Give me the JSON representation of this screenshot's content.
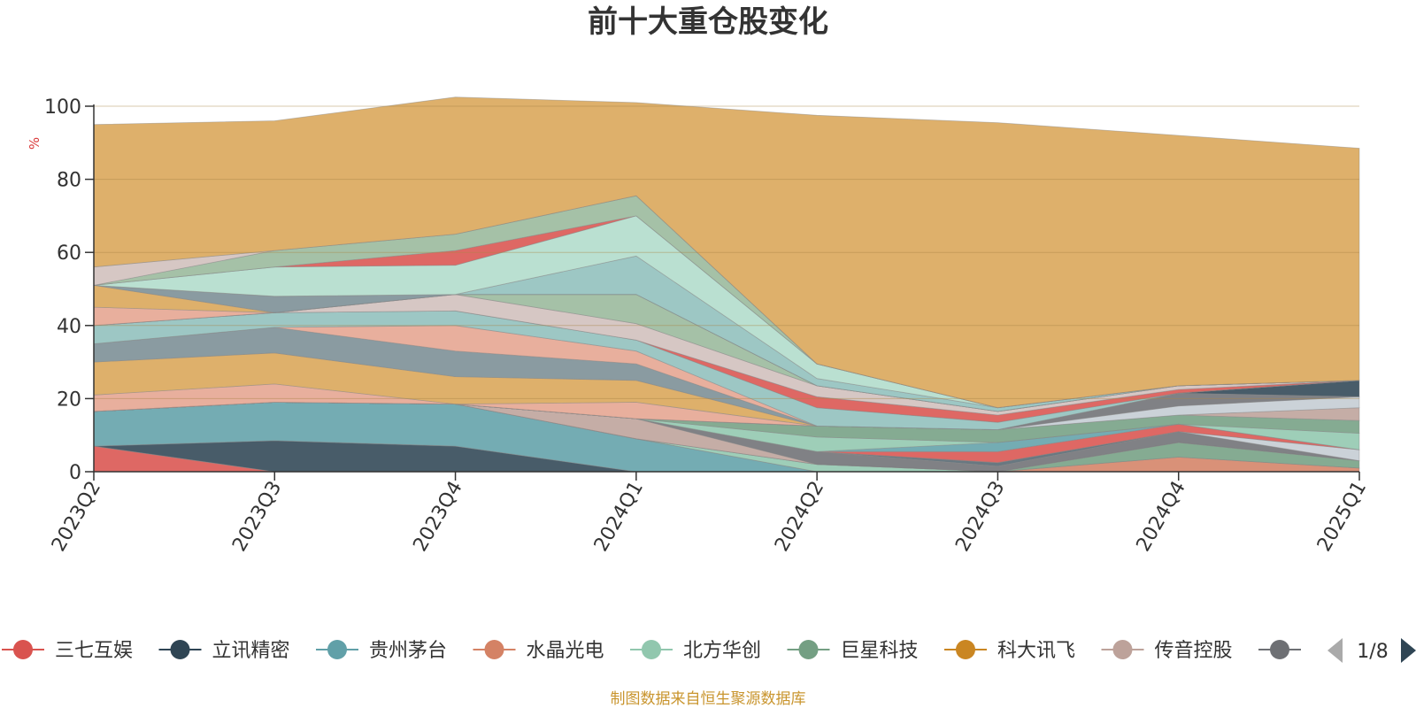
{
  "chart_data": {
    "type": "area",
    "stacked": true,
    "title": "前十大重仓股变化",
    "y_unit": "%",
    "ylim": [
      0,
      100
    ],
    "y_ticks": [
      0,
      20,
      40,
      60,
      80,
      100
    ],
    "grid": "horizontal",
    "categories": [
      "2023Q2",
      "2023Q3",
      "2023Q4",
      "2024Q1",
      "2024Q2",
      "2024Q3",
      "2024Q4",
      "2025Q1"
    ],
    "legend_position": "bottom",
    "series": [
      {
        "name": "三七互娱",
        "color": "#d9534f",
        "values": [
          7,
          0,
          0,
          0,
          0,
          0,
          0,
          0
        ]
      },
      {
        "name": "立讯精密",
        "color": "#2f4554",
        "values": [
          0,
          8.5,
          7,
          0,
          0,
          0,
          0,
          0
        ]
      },
      {
        "name": "贵州茅台",
        "color": "#61a0a8",
        "values": [
          9.5,
          10.5,
          11.5,
          9,
          0,
          0,
          0,
          0
        ]
      },
      {
        "name": "水晶光电",
        "color": "#d48265",
        "values": [
          0,
          0,
          0,
          0,
          0,
          0,
          4,
          1
        ]
      },
      {
        "name": "北方华创",
        "color": "#91c7ae",
        "values": [
          0,
          0,
          0,
          0,
          2,
          0,
          0,
          0
        ]
      },
      {
        "name": "巨星科技",
        "color": "#749f83",
        "values": [
          0,
          0,
          0,
          0,
          0,
          0,
          4,
          2
        ]
      },
      {
        "name": "科大讯飞",
        "color": "#ca8622",
        "values": [
          0,
          0,
          0,
          0,
          0,
          0,
          0,
          0
        ]
      },
      {
        "name": "传音控股",
        "color": "#bda29a",
        "values": [
          0,
          0,
          0,
          5.5,
          0,
          0,
          0,
          0
        ]
      },
      {
        "name": "",
        "color": "#6e7074",
        "values": [
          0,
          0,
          0,
          0,
          3.5,
          1.5,
          3,
          0
        ]
      },
      {
        "name": "",
        "color": "#546570",
        "values": [
          0,
          0,
          0,
          0,
          0,
          1,
          0,
          0
        ]
      },
      {
        "name": "",
        "color": "#c4ccd3",
        "values": [
          0,
          0,
          0,
          0,
          0,
          0,
          0,
          3
        ]
      },
      {
        "name": "",
        "color": "#d9534f",
        "values": [
          0,
          0,
          0,
          0,
          0,
          3,
          2,
          0
        ]
      },
      {
        "name": "",
        "color": "#61a0a8",
        "values": [
          0,
          0,
          0,
          0,
          0,
          2.5,
          0,
          0
        ]
      },
      {
        "name": "",
        "color": "#91c7ae",
        "values": [
          0,
          0,
          0,
          0,
          4,
          0,
          0,
          4.5
        ]
      },
      {
        "name": "",
        "color": "#749f83",
        "values": [
          0,
          0,
          0,
          0,
          3,
          3.5,
          2.5,
          3.5
        ]
      },
      {
        "name": "",
        "color": "#bda29a",
        "values": [
          0,
          0,
          0,
          0,
          0,
          0,
          0,
          3.5
        ]
      },
      {
        "name": "",
        "color": "#c4ccd3",
        "values": [
          0,
          0,
          0,
          0,
          0,
          0,
          2.5,
          3
        ]
      },
      {
        "name": "",
        "color": "#6e7074",
        "values": [
          0,
          0,
          0,
          0,
          0,
          0,
          3.5,
          0
        ]
      },
      {
        "name": "",
        "color": "#2f4554",
        "values": [
          0,
          0,
          0,
          0,
          0,
          0,
          0,
          4.5
        ]
      },
      {
        "name": "",
        "color": "#e5a490",
        "values": [
          4.5,
          5,
          0,
          4.5,
          0,
          0,
          0,
          0
        ]
      },
      {
        "name": "",
        "color": "#d9a557",
        "values": [
          9,
          8.5,
          7.5,
          6,
          0,
          0,
          0,
          0
        ]
      },
      {
        "name": "",
        "color": "#7a8d94",
        "values": [
          5,
          7,
          7,
          4.5,
          0,
          0,
          0,
          0
        ]
      },
      {
        "name": "",
        "color": "#e5a490",
        "values": [
          0,
          0,
          7,
          3.5,
          0,
          0,
          0,
          0
        ]
      },
      {
        "name": "",
        "color": "#8fbfbc",
        "values": [
          5,
          4,
          4,
          3,
          5,
          2,
          0,
          0
        ]
      },
      {
        "name": "",
        "color": "#d9534f",
        "values": [
          0,
          0,
          0,
          0,
          3,
          2,
          1,
          0
        ]
      },
      {
        "name": "",
        "color": "#d0bfbc",
        "values": [
          0,
          0,
          4.5,
          4.5,
          3,
          1,
          1,
          0
        ]
      },
      {
        "name": "",
        "color": "#98b89b",
        "values": [
          0,
          0,
          0,
          8,
          0,
          0,
          0,
          0
        ]
      },
      {
        "name": "",
        "color": "#e5a490",
        "values": [
          5,
          0,
          0,
          0,
          0,
          0,
          0,
          0
        ]
      },
      {
        "name": "",
        "color": "#d9a557",
        "values": [
          6,
          0,
          0,
          0,
          0,
          0,
          0,
          0
        ]
      },
      {
        "name": "",
        "color": "#7a8d94",
        "values": [
          0,
          4.5,
          0,
          0,
          0,
          0,
          0,
          0
        ]
      },
      {
        "name": "",
        "color": "#8fbfbc",
        "values": [
          0,
          0,
          0,
          10.5,
          2,
          1,
          0,
          0
        ]
      },
      {
        "name": "",
        "color": "#b1dccb",
        "values": [
          0,
          8,
          8,
          11,
          4,
          0,
          0,
          0
        ]
      },
      {
        "name": "",
        "color": "#d9534f",
        "values": [
          0,
          0,
          4,
          0,
          0,
          0,
          0,
          0
        ]
      },
      {
        "name": "",
        "color": "#98b89b",
        "values": [
          0,
          4.5,
          4.5,
          5.5,
          0,
          0,
          0,
          0
        ]
      },
      {
        "name": "",
        "color": "#d0bfbc",
        "values": [
          5,
          0,
          0,
          0,
          0,
          0,
          0,
          0
        ]
      },
      {
        "name": "",
        "color": "#d9a557",
        "values": [
          39,
          35.5,
          37.5,
          25.5,
          68,
          78,
          68.5,
          63.5
        ]
      }
    ]
  },
  "legend": {
    "items": [
      {
        "label": "三七互娱",
        "color": "#d9534f"
      },
      {
        "label": "立讯精密",
        "color": "#2f4554"
      },
      {
        "label": "贵州茅台",
        "color": "#61a0a8"
      },
      {
        "label": "水晶光电",
        "color": "#d48265"
      },
      {
        "label": "北方华创",
        "color": "#91c7ae"
      },
      {
        "label": "巨星科技",
        "color": "#749f83"
      },
      {
        "label": "科大讯飞",
        "color": "#ca8622"
      },
      {
        "label": "传音控股",
        "color": "#bda29a"
      },
      {
        "label": "",
        "color": "#6e7074"
      }
    ],
    "page": "1/8",
    "prev_icon": "triangle-left-icon",
    "next_icon": "triangle-right-icon",
    "prev_color": "#aaaaaa",
    "next_color": "#2f4554"
  },
  "source_note": "制图数据来自恒生聚源数据库"
}
